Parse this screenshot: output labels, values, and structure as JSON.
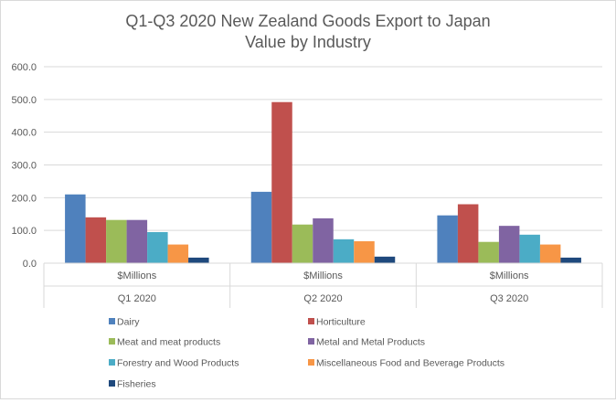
{
  "chart_data": {
    "type": "bar",
    "title_line1": "Q1-Q3 2020 New Zealand Goods Export to Japan",
    "title_line2": "Value by Industry",
    "sub_category": "$Millions",
    "categories": [
      "Q1 2020",
      "Q2 2020",
      "Q3 2020"
    ],
    "y_ticks": [
      "0.0",
      "100.0",
      "200.0",
      "300.0",
      "400.0",
      "500.0",
      "600.0"
    ],
    "ylim": [
      0,
      600
    ],
    "grid": true,
    "legend_position": "bottom",
    "series": [
      {
        "name": "Dairy",
        "color": "#4f81bd",
        "values": [
          210,
          218,
          146
        ]
      },
      {
        "name": "Horticulture",
        "color": "#c0504d",
        "values": [
          140,
          492,
          180
        ]
      },
      {
        "name": "Meat and meat products",
        "color": "#9bbb59",
        "values": [
          132,
          118,
          65
        ]
      },
      {
        "name": "Metal and Metal Products",
        "color": "#8064a2",
        "values": [
          132,
          137,
          114
        ]
      },
      {
        "name": "Forestry and Wood Products",
        "color": "#4bacc6",
        "values": [
          95,
          73,
          87
        ]
      },
      {
        "name": "Miscellaneous Food and Beverage Products",
        "color": "#f79646",
        "values": [
          57,
          67,
          57
        ]
      },
      {
        "name": "Fisheries",
        "color": "#1f497d",
        "values": [
          17,
          20,
          17
        ]
      }
    ]
  }
}
